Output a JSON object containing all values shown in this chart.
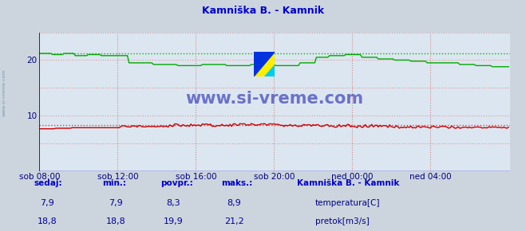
{
  "title": "Kamniška B. - Kamnik",
  "bg_color": "#ccd5de",
  "plot_bg_color": "#dce6f0",
  "title_color": "#0000cc",
  "ylim": [
    0,
    25
  ],
  "ytick_vals": [
    10,
    20
  ],
  "ytick_labels": [
    "10",
    "20"
  ],
  "xtick_labels": [
    "sob 08:00",
    "sob 12:00",
    "sob 16:00",
    "sob 20:00",
    "ned 00:00",
    "ned 04:00"
  ],
  "xtick_positions": [
    0,
    48,
    96,
    144,
    192,
    240
  ],
  "n_points": 289,
  "temp_color": "#cc0000",
  "flow_color": "#00aa00",
  "temp_dashed_color": "#dd4444",
  "flow_dashed_color": "#00bb00",
  "temp_avg_val": 8.3,
  "flow_maks_val": 21.2,
  "watermark": "www.si-vreme.com",
  "watermark_color": "#1111aa",
  "sidebar_text": "www.si-vreme.com",
  "sidebar_color": "#7799aa",
  "sedaj_label": "sedaj:",
  "min_label": "min.:",
  "povpr_label": "povpr.:",
  "maks_label": "maks.:",
  "station_label": "Kamniška B. - Kamnik",
  "temp_label": "temperatura[C]",
  "flow_label": "pretok[m3/s]",
  "sedaj_temp": "7,9",
  "min_temp": "7,9",
  "povpr_temp": "8,3",
  "maks_temp": "8,9",
  "sedaj_flow": "18,8",
  "min_flow": "18,8",
  "povpr_flow": "19,9",
  "maks_flow": "21,2",
  "footer_label_color": "#0000cc",
  "footer_value_color": "#000099",
  "grid_h_color": "#dd9999",
  "grid_v_color": "#cc8888",
  "axis_color": "#0000cc",
  "arrow_color": "#cc0000"
}
